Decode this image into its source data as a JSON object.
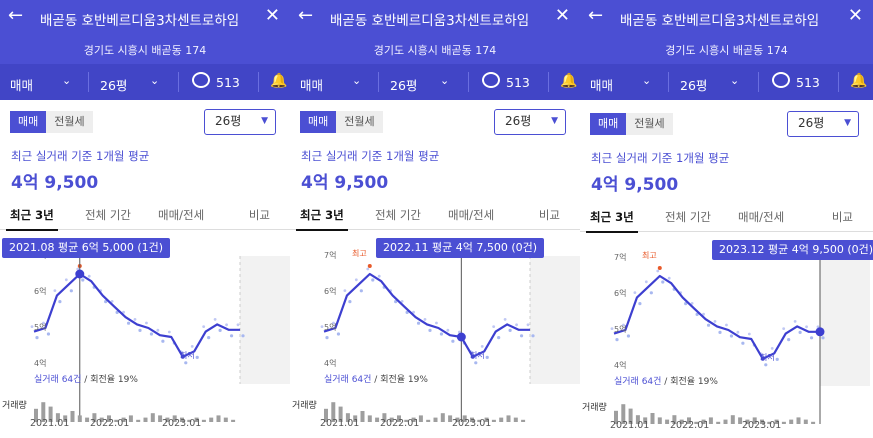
{
  "header": {
    "back_icon": "arrow-left-icon",
    "title": "배곧동 호반베르디움3차센트로하임",
    "close_icon": "close-icon",
    "address": "경기도 시흥시 배곧동 174"
  },
  "filters": {
    "trade": "매매",
    "size": "26평",
    "comments": "513",
    "comment_icon": "speech-bubble-icon",
    "bell_icon": "bell-icon"
  },
  "segment": {
    "sale": "매매",
    "rent": "전월세"
  },
  "size_select": "26평",
  "caption": "최근 실거래 기준 1개월 평균",
  "price": "4억 9,500",
  "tabs": [
    "최근 3년",
    "전체 기간",
    "매매/전세",
    "비교"
  ],
  "y_axis": {
    "t7": "7억",
    "t6": "6억",
    "t5": "5억",
    "t4": "4억"
  },
  "x_axis": [
    "2021.01",
    "2022.01",
    "2023.01"
  ],
  "labels": {
    "max": "최고",
    "min": "최저",
    "volume": "거래량"
  },
  "trades_prefix": "실거래 64건",
  "trades_suffix": " / 회전율 19%",
  "tooltips": [
    "2021.08 평균 6억 5,000 (1건)",
    "2022.11 평균 4억 7,500 (0건)",
    "2023.12 평균 4억 9,500 (0건)"
  ],
  "colors": {
    "accent": "#4b4fd3",
    "max": "#e85a2a"
  },
  "chart_data": {
    "type": "line",
    "x": [
      "2021.01",
      "2021.03",
      "2021.05",
      "2021.07",
      "2021.08",
      "2021.10",
      "2021.12",
      "2022.02",
      "2022.04",
      "2022.06",
      "2022.08",
      "2022.10",
      "2022.11",
      "2023.01",
      "2023.03",
      "2023.05",
      "2023.07",
      "2023.09",
      "2023.12"
    ],
    "series": [
      {
        "values": [
          4.9,
          5.0,
          5.9,
          6.2,
          6.5,
          6.3,
          5.9,
          5.6,
          5.3,
          5.1,
          5.0,
          4.8,
          4.75,
          4.2,
          4.35,
          4.9,
          5.1,
          4.95,
          4.95
        ]
      }
    ],
    "ylim": [
      4,
      7
    ],
    "ylabel": "",
    "xlabel": ""
  }
}
